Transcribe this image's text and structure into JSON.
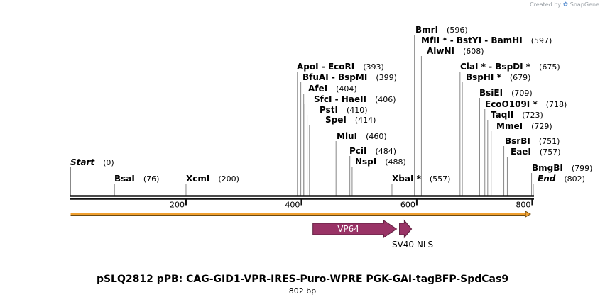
{
  "branding": {
    "created_by": "Created by",
    "product": "SnapGene"
  },
  "map": {
    "title": "pSLQ2812 pPB: CAG-GID1-VPR-IRES-Puro-WPRE PGK-GAI-tagBFP-SpdCas9",
    "length_label": "802 bp",
    "length_bp": 802
  },
  "chart_data": {
    "type": "linear-map",
    "ticks": [
      200,
      400,
      600,
      800
    ],
    "sites": [
      {
        "parts": [
          "Start"
        ],
        "pos": "(0)",
        "bp": 0,
        "italic": true
      },
      {
        "parts": [
          "BsaI"
        ],
        "pos": "(76)",
        "bp": 76
      },
      {
        "parts": [
          "XcmI"
        ],
        "pos": "(200)",
        "bp": 200
      },
      {
        "parts": [
          "ApoI",
          "EcoRI"
        ],
        "pos": "(393)",
        "bp": 393
      },
      {
        "parts": [
          "BfuAI",
          "BspMI"
        ],
        "pos": "(399)",
        "bp": 399
      },
      {
        "parts": [
          "AfeI"
        ],
        "pos": "(404)",
        "bp": 404
      },
      {
        "parts": [
          "SfcI",
          "HaeII"
        ],
        "pos": "(406)",
        "bp": 406
      },
      {
        "parts": [
          "PstI"
        ],
        "pos": "(410)",
        "bp": 410
      },
      {
        "parts": [
          "SpeI"
        ],
        "pos": "(414)",
        "bp": 414
      },
      {
        "parts": [
          "MluI"
        ],
        "pos": "(460)",
        "bp": 460
      },
      {
        "parts": [
          "PciI"
        ],
        "pos": "(484)",
        "bp": 484
      },
      {
        "parts": [
          "NspI"
        ],
        "pos": "(488)",
        "bp": 488
      },
      {
        "parts": [
          "XbaI *"
        ],
        "pos": "(557)",
        "bp": 557
      },
      {
        "parts": [
          "BmrI"
        ],
        "pos": "(596)",
        "bp": 596
      },
      {
        "parts": [
          "MfII *",
          "BstYI",
          "BamHI"
        ],
        "pos": "(597)",
        "bp": 597
      },
      {
        "parts": [
          "AlwNI"
        ],
        "pos": "(608)",
        "bp": 608
      },
      {
        "parts": [
          "ClaI *",
          "BspDI *"
        ],
        "pos": "(675)",
        "bp": 675
      },
      {
        "parts": [
          "BspHI *"
        ],
        "pos": "(679)",
        "bp": 679
      },
      {
        "parts": [
          "BsiEI"
        ],
        "pos": "(709)",
        "bp": 709
      },
      {
        "parts": [
          "EcoO109I *"
        ],
        "pos": "(718)",
        "bp": 718
      },
      {
        "parts": [
          "TaqII"
        ],
        "pos": "(723)",
        "bp": 723
      },
      {
        "parts": [
          "MmeI"
        ],
        "pos": "(729)",
        "bp": 729
      },
      {
        "parts": [
          "BsrBI"
        ],
        "pos": "(751)",
        "bp": 751
      },
      {
        "parts": [
          "EaeI"
        ],
        "pos": "(757)",
        "bp": 757
      },
      {
        "parts": [
          "BmgBI"
        ],
        "pos": "(799)",
        "bp": 799
      },
      {
        "parts": [
          "End"
        ],
        "pos": "(802)",
        "bp": 802,
        "italic": true
      }
    ],
    "features": [
      {
        "name": "VP64",
        "start": 420,
        "end": 565,
        "color": "#993366",
        "label_inside": true
      },
      {
        "name": "SV40 NLS",
        "start": 570,
        "end": 591,
        "color": "#993366",
        "label_inside": false
      }
    ],
    "orf": {
      "start": 0,
      "end": 802,
      "color": "#f0a030"
    }
  }
}
